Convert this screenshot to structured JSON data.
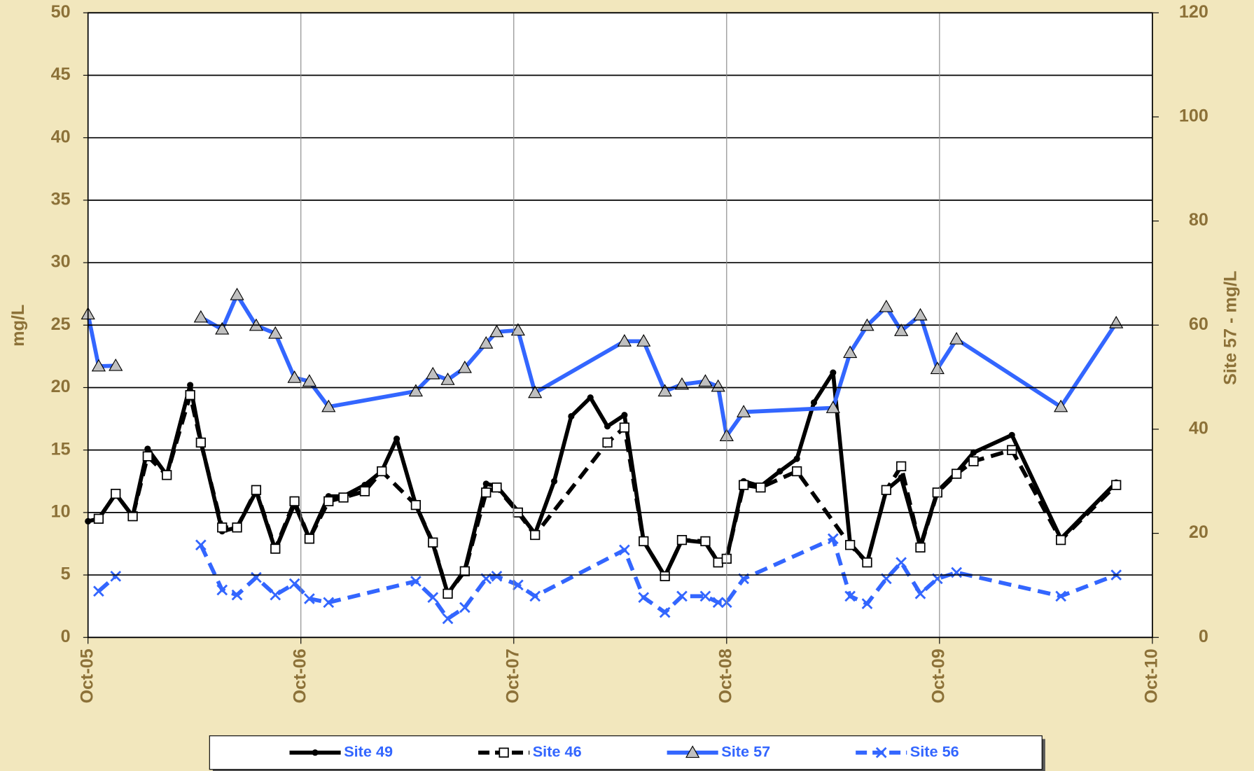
{
  "chart_data": {
    "type": "line",
    "y_label": "mg/L",
    "y2_label": "Site 57 - mg/L",
    "xlim": [
      2005.75,
      2010.75
    ],
    "xticks": [
      {
        "value": 2005.75,
        "label": "Oct-05"
      },
      {
        "value": 2006.75,
        "label": "Oct-06"
      },
      {
        "value": 2007.75,
        "label": "Oct-07"
      },
      {
        "value": 2008.75,
        "label": "Oct-08"
      },
      {
        "value": 2009.75,
        "label": "Oct-09"
      },
      {
        "value": 2010.75,
        "label": "Oct-10"
      }
    ],
    "ylim": [
      0,
      50
    ],
    "yticks": [
      0,
      5,
      10,
      15,
      20,
      25,
      30,
      35,
      40,
      45,
      50
    ],
    "y2lim": [
      0,
      120
    ],
    "y2ticks": [
      0,
      20,
      40,
      60,
      80,
      100,
      120
    ],
    "grid": true,
    "legend": "bottom",
    "series": [
      {
        "name": "Site 49",
        "color": "#000000",
        "dash": "solid",
        "marker": "dot",
        "axis": "y",
        "x": [
          2005.75,
          2005.8,
          2005.88,
          2005.96,
          2006.03,
          2006.12,
          2006.23,
          2006.28,
          2006.38,
          2006.45,
          2006.54,
          2006.63,
          2006.72,
          2006.79,
          2006.88,
          2006.95,
          2007.05,
          2007.13,
          2007.2,
          2007.29,
          2007.37,
          2007.44,
          2007.52,
          2007.62,
          2007.67,
          2007.77,
          2007.85,
          2007.94,
          2008.02,
          2008.11,
          2008.19,
          2008.27,
          2008.36,
          2008.46,
          2008.54,
          2008.65,
          2008.71,
          2008.75,
          2008.83,
          2008.91,
          2009.0,
          2009.08,
          2009.16,
          2009.25,
          2009.33,
          2009.41,
          2009.5,
          2009.57,
          2009.66,
          2009.74,
          2009.83,
          2009.91,
          2010.09,
          2010.32,
          2010.58
        ],
        "values": [
          9.3,
          9.5,
          11.5,
          9.7,
          15.1,
          13.0,
          20.2,
          15.7,
          8.5,
          8.8,
          11.7,
          7.0,
          10.7,
          7.9,
          11.3,
          11.3,
          12.2,
          13.3,
          15.9,
          10.6,
          7.5,
          3.5,
          5.4,
          12.3,
          12.1,
          10.1,
          8.3,
          12.5,
          17.7,
          19.2,
          16.9,
          17.8,
          7.7,
          4.9,
          7.8,
          7.6,
          6.0,
          6.3,
          12.5,
          12.1,
          13.3,
          14.3,
          18.8,
          21.2,
          7.5,
          6.0,
          11.8,
          12.8,
          7.3,
          11.7,
          13.2,
          14.8,
          16.2,
          7.9,
          12.4
        ]
      },
      {
        "name": "Site 46",
        "color": "#000000",
        "dash": "dashed",
        "marker": "square",
        "axis": "y",
        "x": [
          2005.8,
          2005.88,
          2005.96,
          2006.03,
          2006.12,
          2006.23,
          2006.28,
          2006.38,
          2006.45,
          2006.54,
          2006.63,
          2006.72,
          2006.79,
          2006.88,
          2006.95,
          2007.05,
          2007.13,
          2007.29,
          2007.37,
          2007.44,
          2007.52,
          2007.62,
          2007.67,
          2007.77,
          2007.85,
          2008.19,
          2008.27,
          2008.36,
          2008.46,
          2008.54,
          2008.65,
          2008.71,
          2008.75,
          2008.83,
          2008.91,
          2009.08,
          2009.33,
          2009.41,
          2009.5,
          2009.57,
          2009.66,
          2009.74,
          2009.83,
          2009.91,
          2010.09,
          2010.32,
          2010.58
        ],
        "values": [
          9.5,
          11.5,
          9.7,
          14.5,
          13.0,
          19.4,
          15.6,
          8.8,
          8.8,
          11.8,
          7.1,
          10.9,
          7.9,
          10.9,
          11.2,
          11.7,
          13.3,
          10.6,
          7.6,
          3.5,
          5.3,
          11.6,
          12.0,
          10.0,
          8.2,
          15.6,
          16.8,
          7.7,
          4.9,
          7.8,
          7.7,
          6.0,
          6.3,
          12.2,
          12.0,
          13.3,
          7.4,
          6.0,
          11.8,
          13.7,
          7.2,
          11.6,
          13.1,
          14.1,
          15.0,
          7.8,
          12.2
        ]
      },
      {
        "name": "Site 57",
        "color": "#3366ff",
        "dash": "solid",
        "marker": "triangle",
        "axis": "y2",
        "x": [
          2005.75,
          2005.8,
          2005.88,
          2006.05,
          2006.28,
          2006.38,
          2006.45,
          2006.54,
          2006.63,
          2006.72,
          2006.79,
          2006.88,
          2007.29,
          2007.37,
          2007.44,
          2007.52,
          2007.62,
          2007.67,
          2007.77,
          2007.85,
          2008.27,
          2008.36,
          2008.46,
          2008.54,
          2008.65,
          2008.71,
          2008.75,
          2008.83,
          2009.25,
          2009.33,
          2009.41,
          2009.5,
          2009.57,
          2009.66,
          2009.74,
          2009.83,
          2010.32,
          2010.58
        ],
        "values": [
          62.1,
          52.1,
          52.2,
          null,
          61.5,
          59.2,
          65.8,
          59.9,
          58.4,
          49.9,
          49.2,
          44.3,
          47.3,
          50.6,
          49.5,
          51.8,
          56.5,
          58.7,
          59.0,
          47.0,
          56.9,
          56.9,
          47.3,
          48.6,
          49.2,
          48.2,
          38.7,
          43.3,
          44.1,
          54.7,
          59.9,
          63.5,
          58.9,
          61.9,
          51.6,
          57.3,
          44.3,
          60.4
        ]
      },
      {
        "name": "Site 56",
        "color": "#3366ff",
        "dash": "dashed",
        "marker": "x",
        "axis": "y",
        "x": [
          2005.8,
          2005.88,
          2006.05,
          2006.28,
          2006.38,
          2006.45,
          2006.54,
          2006.63,
          2006.72,
          2006.79,
          2006.88,
          2007.29,
          2007.37,
          2007.44,
          2007.52,
          2007.62,
          2007.67,
          2007.77,
          2007.85,
          2008.27,
          2008.36,
          2008.46,
          2008.54,
          2008.65,
          2008.71,
          2008.75,
          2008.83,
          2009.25,
          2009.33,
          2009.41,
          2009.5,
          2009.57,
          2009.66,
          2009.74,
          2009.83,
          2010.32,
          2010.58
        ],
        "values": [
          3.7,
          4.9,
          null,
          7.4,
          3.8,
          3.4,
          4.8,
          3.4,
          4.3,
          3.1,
          2.8,
          4.5,
          3.2,
          1.5,
          2.4,
          4.7,
          4.9,
          4.2,
          3.3,
          7.0,
          3.2,
          2.0,
          3.3,
          3.3,
          2.8,
          2.8,
          4.7,
          7.9,
          3.3,
          2.7,
          4.7,
          6.0,
          3.5,
          4.7,
          5.2,
          3.3,
          5.0
        ]
      }
    ]
  }
}
